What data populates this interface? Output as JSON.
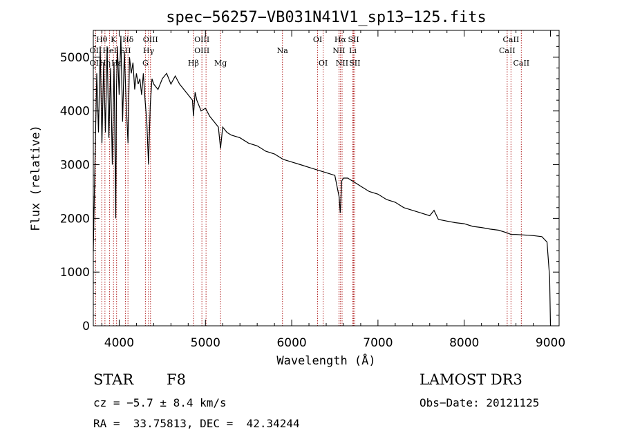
{
  "chart_data": {
    "type": "line",
    "title": "spec−56257−VB031N41V1_sp13−125.fits",
    "xlabel": "Wavelength (Å)",
    "ylabel": "Flux (relative)",
    "xlim": [
      3700,
      9100
    ],
    "ylim": [
      0,
      5500
    ],
    "xticks": [
      4000,
      5000,
      6000,
      7000,
      8000,
      9000
    ],
    "yticks": [
      0,
      1000,
      2000,
      3000,
      4000,
      5000
    ],
    "line_color": "#000000",
    "marker_color": "#b22222",
    "series": [
      {
        "name": "flux",
        "x": [
          3700,
          3720,
          3740,
          3760,
          3780,
          3800,
          3820,
          3840,
          3860,
          3880,
          3900,
          3920,
          3940,
          3960,
          3968,
          3980,
          4000,
          4020,
          4040,
          4060,
          4080,
          4102,
          4120,
          4140,
          4160,
          4180,
          4200,
          4220,
          4240,
          4260,
          4280,
          4300,
          4320,
          4340,
          4360,
          4380,
          4400,
          4450,
          4500,
          4550,
          4600,
          4650,
          4700,
          4750,
          4800,
          4850,
          4861,
          4880,
          4900,
          4950,
          5000,
          5050,
          5100,
          5150,
          5175,
          5200,
          5250,
          5300,
          5400,
          5500,
          5600,
          5700,
          5800,
          5900,
          6000,
          6100,
          6200,
          6300,
          6400,
          6500,
          6550,
          6563,
          6580,
          6600,
          6650,
          6700,
          6750,
          6800,
          6900,
          7000,
          7100,
          7200,
          7300,
          7400,
          7500,
          7600,
          7650,
          7700,
          7800,
          7900,
          8000,
          8100,
          8200,
          8300,
          8400,
          8500,
          8542,
          8600,
          8700,
          8800,
          8900,
          8960,
          8990,
          9000
        ],
        "y": [
          1400,
          3100,
          4700,
          3600,
          5200,
          3400,
          4900,
          3600,
          5200,
          3500,
          4800,
          3000,
          4900,
          2000,
          4400,
          5200,
          4300,
          5400,
          3800,
          5100,
          4200,
          3400,
          5000,
          4700,
          4900,
          4400,
          4700,
          4500,
          4600,
          4300,
          4700,
          4200,
          3800,
          3000,
          4100,
          4600,
          4500,
          4400,
          4600,
          4700,
          4500,
          4650,
          4500,
          4400,
          4300,
          4200,
          3900,
          4350,
          4200,
          4000,
          4050,
          3900,
          3800,
          3700,
          3300,
          3700,
          3600,
          3550,
          3500,
          3400,
          3350,
          3250,
          3200,
          3100,
          3050,
          3000,
          2950,
          2900,
          2850,
          2800,
          2400,
          2100,
          2700,
          2750,
          2750,
          2700,
          2650,
          2600,
          2500,
          2450,
          2350,
          2300,
          2200,
          2150,
          2100,
          2050,
          2150,
          1980,
          1950,
          1920,
          1900,
          1850,
          1830,
          1800,
          1780,
          1730,
          1700,
          1700,
          1690,
          1680,
          1660,
          1560,
          900,
          0
        ]
      }
    ],
    "lines": [
      {
        "name": "Hθ",
        "x": 3798,
        "row": 0
      },
      {
        "name": "K",
        "x": 3934,
        "row": 0
      },
      {
        "name": "Hδ",
        "x": 4102,
        "row": 0
      },
      {
        "name": "OIII",
        "x": 4363,
        "row": 0
      },
      {
        "name": "OIII",
        "x": 4959,
        "row": 0
      },
      {
        "name": "OI",
        "x": 6300,
        "row": 0
      },
      {
        "name": "Hα",
        "x": 6563,
        "row": 0
      },
      {
        "name": "SII",
        "x": 6717,
        "row": 0
      },
      {
        "name": "CaII",
        "x": 8542,
        "row": 0
      },
      {
        "name": "OII",
        "x": 3727,
        "row": 1
      },
      {
        "name": "HeI",
        "x": 3889,
        "row": 1
      },
      {
        "name": "SII",
        "x": 4072,
        "row": 1
      },
      {
        "name": "Hγ",
        "x": 4341,
        "row": 1
      },
      {
        "name": "OIII",
        "x": 4959,
        "row": 1
      },
      {
        "name": "Na",
        "x": 5893,
        "row": 1
      },
      {
        "name": "NII",
        "x": 6548,
        "row": 1
      },
      {
        "name": "Li",
        "x": 6708,
        "row": 1
      },
      {
        "name": "CaII",
        "x": 8498,
        "row": 1
      },
      {
        "name": "OII",
        "x": 3727,
        "row": 2
      },
      {
        "name": "Hη",
        "x": 3835,
        "row": 2
      },
      {
        "name": "Hε",
        "x": 3970,
        "row": 2
      },
      {
        "name": "G",
        "x": 4304,
        "row": 2
      },
      {
        "name": "Hβ",
        "x": 4861,
        "row": 3
      },
      {
        "name": "Mg",
        "x": 5175,
        "row": 3
      },
      {
        "name": "OI",
        "x": 6364,
        "row": 3
      },
      {
        "name": "NII",
        "x": 6584,
        "row": 3
      },
      {
        "name": "SII",
        "x": 6731,
        "row": 3
      },
      {
        "name": "CaII",
        "x": 8662,
        "row": 3
      }
    ],
    "marker_x": [
      3727,
      3798,
      3835,
      3889,
      3934,
      3970,
      4072,
      4102,
      4304,
      4341,
      4363,
      4861,
      4959,
      5007,
      5175,
      5893,
      6300,
      6364,
      6548,
      6563,
      6584,
      6708,
      6717,
      6731,
      8498,
      8542,
      8662
    ]
  },
  "info": {
    "class_label": "STAR",
    "subclass": "F8",
    "survey": "LAMOST DR3",
    "velocity": "cz = −5.7 ± 8.4 km/s",
    "obs_date": "Obs−Date: 20121125",
    "coords": "RA =  33.75813, DEC =  42.34244"
  }
}
